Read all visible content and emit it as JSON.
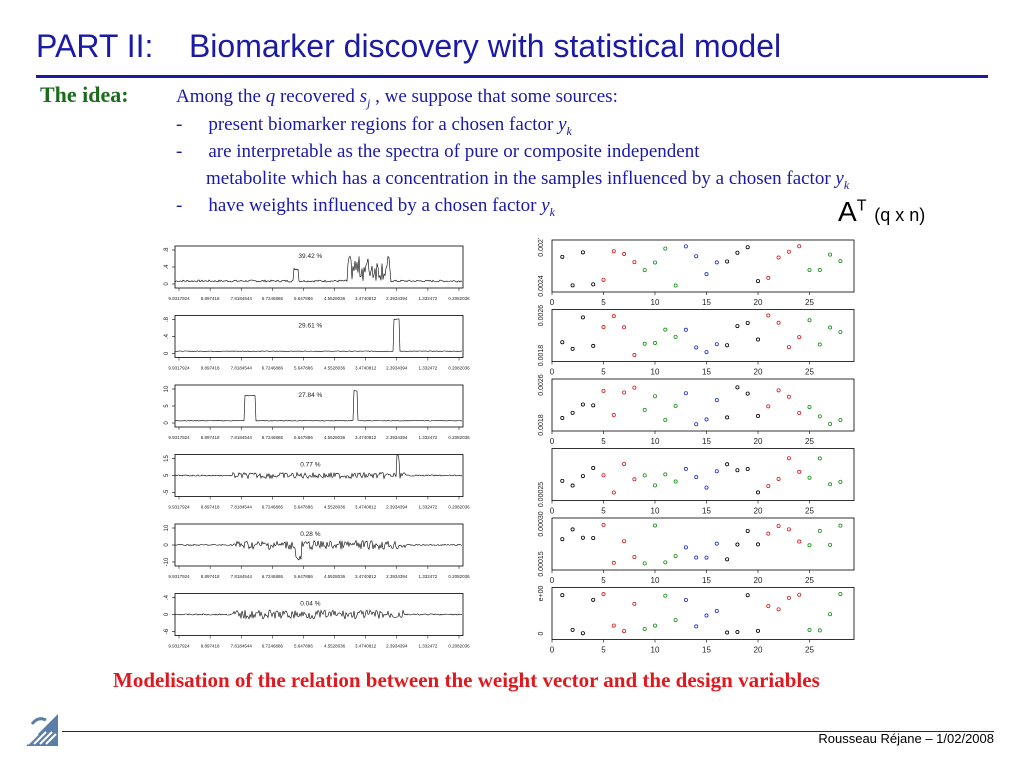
{
  "title": "PART II:    Biomarker discovery with statistical model",
  "idea": {
    "label": "The idea:",
    "intro": [
      "Among the ",
      "q",
      " recovered ",
      "s",
      "j",
      " , we suppose that some sources:"
    ],
    "bullets": [
      {
        "dash": "-",
        "text": "present biomarker regions for a chosen factor ",
        "var": "y",
        "sub": "k"
      },
      {
        "dash": "-",
        "text": "are interpretable as the spectra of pure or composite independent",
        "var": "",
        "sub": ""
      },
      {
        "dash": "",
        "text": "metabolite which has a concentration  in the samples influenced  by a chosen factor ",
        "var": "y",
        "sub": "k"
      },
      {
        "dash": "-",
        "text": "have  weights influenced  by a chosen factor ",
        "var": "y",
        "sub": "k"
      }
    ]
  },
  "matrix_label": {
    "main": "A",
    "sup": "T",
    "dims": "(q x n)"
  },
  "conclusion": "Modelisation of the  relation between the weight vector and the design variables",
  "footer": "Rousseau Réjane – 1/02/2008",
  "colors": {
    "title": "#1a1aa6",
    "idea": "#1d6b1d",
    "conclusion": "#e0191f"
  },
  "chart_data": [
    {
      "type": "line",
      "description_panels": "left column: 6 spectra plots (sources s_j)",
      "x_tick_labels": [
        "9.9317924",
        "8.897418",
        "7.8184544",
        "6.7246886",
        "5.647886",
        "4.5528036",
        "3.4740812",
        "2.3934394",
        "1.332472",
        "0.2082036"
      ],
      "panels": [
        {
          "yticks": [
            "0",
            ".4",
            ".8"
          ],
          "annotation": "39.42 %"
        },
        {
          "yticks": [
            "0",
            ".4",
            ".8"
          ],
          "annotation": "29.61 %"
        },
        {
          "yticks": [
            "0",
            "5",
            "10"
          ],
          "annotation": "27.84 %"
        },
        {
          "yticks": [
            "-5",
            "5",
            "15"
          ],
          "annotation": "0.77 %"
        },
        {
          "yticks": [
            "-10",
            "0",
            "10"
          ],
          "annotation": "0.28 %"
        },
        {
          "yticks": [
            "-6",
            "0",
            ".4"
          ],
          "annotation": "0.04 %"
        }
      ]
    },
    {
      "type": "scatter",
      "description_panels": "right column: 6 weight plots (rows of A^T)",
      "x_ticks": [
        0,
        5,
        10,
        15,
        20,
        25
      ],
      "panels": [
        {
          "yticks": [
            "0.0024",
            "0.0027"
          ]
        },
        {
          "yticks": [
            "0.0018",
            "0.0026"
          ]
        },
        {
          "yticks": [
            "0.0018",
            "0.0026"
          ]
        },
        {
          "yticks": [
            "0.00025"
          ]
        },
        {
          "yticks": [
            "0.00015",
            "0.00030"
          ]
        },
        {
          "yticks": [
            "0",
            "e+00"
          ]
        }
      ],
      "point_colors": [
        "#000000",
        "#000000",
        "#d42020",
        "#d42020",
        "#1d8f1d",
        "#1d8f1d",
        "#2030c8",
        "#2030c8"
      ]
    }
  ]
}
